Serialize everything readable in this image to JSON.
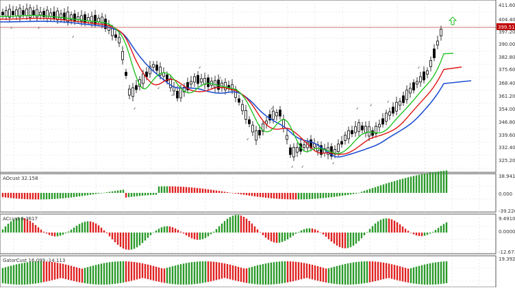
{
  "colors": {
    "background": "#ffffff",
    "grid": "#d8d8d8",
    "pane_border": "#555555",
    "candle": "#000000",
    "ma_blue": "#1f4fd1",
    "ma_red": "#e01010",
    "ma_green": "#22c322",
    "price_line": "#c04040",
    "price_tag_bg": "#c00000",
    "price_tag_text": "#ffffff",
    "hist_up": "#2a9a2a",
    "hist_down": "#e02020",
    "fractal": "#8a8a8a",
    "arrow": "#22bb22"
  },
  "main": {
    "price_axis": [
      "411.60",
      "404.40",
      "397.20",
      "390.00",
      "382.80",
      "375.60",
      "368.40",
      "361.20",
      "354.00",
      "346.80",
      "339.60",
      "332.40",
      "325.20"
    ],
    "current_price": "399.51",
    "arrow_icon": "up-arrow-icon"
  },
  "panes": [
    {
      "title": "AOcust 32.158",
      "axis": [
        "38.941",
        "0.000",
        "-39.226"
      ]
    },
    {
      "title": "ACcust 6.3617",
      "axis": [
        "9.4910",
        "0.0000",
        "-12.6738"
      ]
    },
    {
      "title": "GatorCust 16.099 -14.113",
      "axis": [
        "19.392"
      ]
    }
  ]
}
